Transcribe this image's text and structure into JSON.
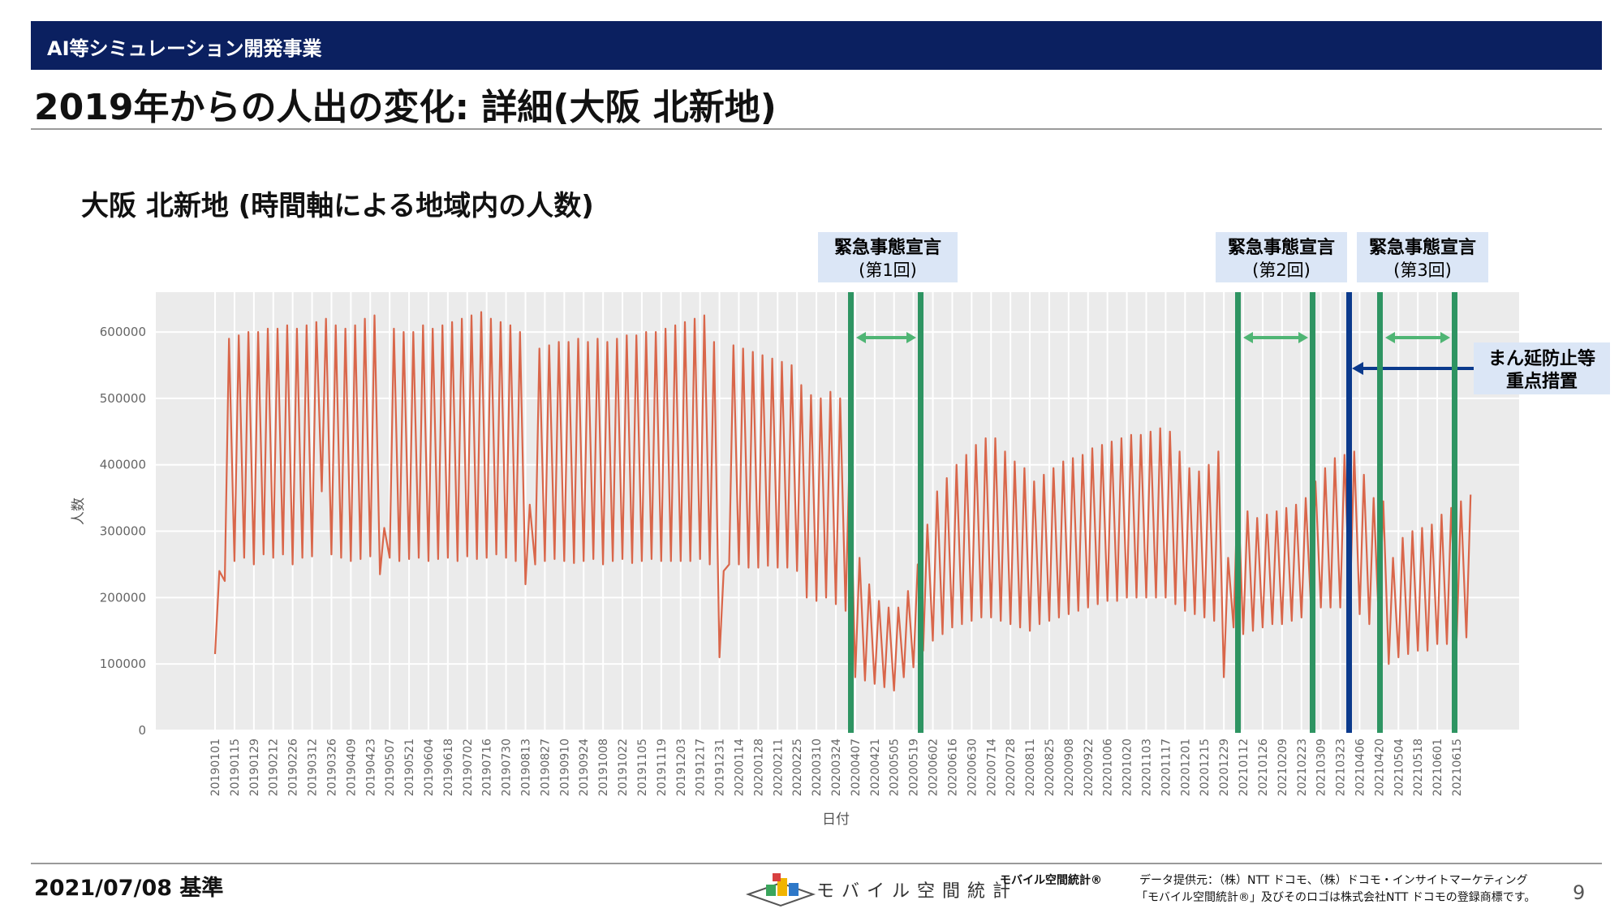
{
  "header": {
    "band_label": "AI等シミュレーション開発事業",
    "title": "2019年からの人出の変化: 詳細(大阪 北新地)"
  },
  "chart_title": "大阪 北新地 (時間軸による地域内の人数)",
  "footer": {
    "date": "2021/07/08 基準",
    "logo_text": "モバイル空間統計",
    "brand": "モバイル空間統計®",
    "provider_line1": "データ提供元：（株）NTT ドコモ、（株）ドコモ・インサイトマーケティング",
    "provider_line2": "「モバイル空間統計®」及びそのロゴは株式会社NTT ドコモの登録商標です。",
    "page": "9"
  },
  "colors": {
    "line": "#d9664a",
    "band": "#0b2060",
    "decl_bar": "#2e9462",
    "arrow": "#4fb574",
    "mambo": "#0b3a8c",
    "label_bg": "#dbe6f6"
  },
  "annotations": {
    "decl1": {
      "line1": "緊急事態宣言",
      "line2": "(第1回)"
    },
    "decl2": {
      "line1": "緊急事態宣言",
      "line2": "(第2回)"
    },
    "decl3": {
      "line1": "緊急事態宣言",
      "line2": "(第3回)"
    },
    "mambo": {
      "line1": "まん延防止等",
      "line2": "重点措置"
    }
  },
  "chart_data": {
    "type": "line",
    "title": "",
    "xlabel": "日付",
    "ylabel": "人数",
    "ylim": [
      0,
      660000
    ],
    "yticks": [
      0,
      100000,
      200000,
      300000,
      400000,
      500000,
      600000
    ],
    "ytick_labels": [
      "0",
      "100000",
      "200000",
      "300000",
      "400000",
      "500000",
      "600000"
    ],
    "x_tick_labels": [
      "20190101",
      "20190115",
      "20190129",
      "20190212",
      "20190226",
      "20190312",
      "20190326",
      "20190409",
      "20190423",
      "20190507",
      "20190521",
      "20190604",
      "20190618",
      "20190702",
      "20190716",
      "20190730",
      "20190813",
      "20190827",
      "20190910",
      "20190924",
      "20191008",
      "20191022",
      "20191105",
      "20191119",
      "20191203",
      "20191217",
      "20191231",
      "20200114",
      "20200128",
      "20200211",
      "20200225",
      "20200310",
      "20200324",
      "20200407",
      "20200421",
      "20200505",
      "20200519",
      "20200602",
      "20200616",
      "20200630",
      "20200714",
      "20200728",
      "20200811",
      "20200825",
      "20200908",
      "20200922",
      "20201006",
      "20201020",
      "20201103",
      "20201117",
      "20201201",
      "20201215",
      "20201229",
      "20210112",
      "20210126",
      "20210209",
      "20210223",
      "20210309",
      "20210323",
      "20210406",
      "20210420",
      "20210504",
      "20210518",
      "20210601",
      "20210615"
    ],
    "grid": true,
    "series": [
      {
        "weekly": [
          {
            "week": "20190101",
            "high": 240000,
            "low": 115000
          },
          {
            "week": "20190108",
            "high": 590000,
            "low": 225000
          },
          {
            "week": "20190115",
            "high": 595000,
            "low": 255000
          },
          {
            "week": "20190122",
            "high": 600000,
            "low": 260000
          },
          {
            "week": "20190129",
            "high": 600000,
            "low": 250000
          },
          {
            "week": "20190205",
            "high": 605000,
            "low": 265000
          },
          {
            "week": "20190212",
            "high": 605000,
            "low": 260000
          },
          {
            "week": "20190219",
            "high": 610000,
            "low": 265000
          },
          {
            "week": "20190226",
            "high": 605000,
            "low": 250000
          },
          {
            "week": "20190305",
            "high": 610000,
            "low": 260000
          },
          {
            "week": "20190312",
            "high": 615000,
            "low": 262000
          },
          {
            "week": "20190319",
            "high": 620000,
            "low": 360000
          },
          {
            "week": "20190326",
            "high": 610000,
            "low": 265000
          },
          {
            "week": "20190402",
            "high": 605000,
            "low": 260000
          },
          {
            "week": "20190409",
            "high": 610000,
            "low": 255000
          },
          {
            "week": "20190416",
            "high": 620000,
            "low": 258000
          },
          {
            "week": "20190423",
            "high": 625000,
            "low": 262000
          },
          {
            "week": "20190430",
            "high": 305000,
            "low": 235000
          },
          {
            "week": "20190507",
            "high": 605000,
            "low": 260000
          },
          {
            "week": "20190514",
            "high": 600000,
            "low": 255000
          },
          {
            "week": "20190521",
            "high": 600000,
            "low": 258000
          },
          {
            "week": "20190528",
            "high": 610000,
            "low": 260000
          },
          {
            "week": "20190604",
            "high": 605000,
            "low": 255000
          },
          {
            "week": "20190611",
            "high": 610000,
            "low": 258000
          },
          {
            "week": "20190618",
            "high": 615000,
            "low": 260000
          },
          {
            "week": "20190625",
            "high": 620000,
            "low": 255000
          },
          {
            "week": "20190702",
            "high": 625000,
            "low": 262000
          },
          {
            "week": "20190709",
            "high": 630000,
            "low": 258000
          },
          {
            "week": "20190716",
            "high": 620000,
            "low": 260000
          },
          {
            "week": "20190723",
            "high": 615000,
            "low": 265000
          },
          {
            "week": "20190730",
            "high": 610000,
            "low": 260000
          },
          {
            "week": "20190806",
            "high": 600000,
            "low": 255000
          },
          {
            "week": "20190813",
            "high": 340000,
            "low": 220000
          },
          {
            "week": "20190820",
            "high": 575000,
            "low": 250000
          },
          {
            "week": "20190827",
            "high": 580000,
            "low": 255000
          },
          {
            "week": "20190903",
            "high": 585000,
            "low": 258000
          },
          {
            "week": "20190910",
            "high": 585000,
            "low": 255000
          },
          {
            "week": "20190917",
            "high": 590000,
            "low": 252000
          },
          {
            "week": "20190924",
            "high": 585000,
            "low": 255000
          },
          {
            "week": "20191001",
            "high": 590000,
            "low": 258000
          },
          {
            "week": "20191008",
            "high": 585000,
            "low": 250000
          },
          {
            "week": "20191015",
            "high": 590000,
            "low": 255000
          },
          {
            "week": "20191022",
            "high": 595000,
            "low": 258000
          },
          {
            "week": "20191029",
            "high": 595000,
            "low": 252000
          },
          {
            "week": "20191105",
            "high": 600000,
            "low": 255000
          },
          {
            "week": "20191112",
            "high": 600000,
            "low": 258000
          },
          {
            "week": "20191119",
            "high": 605000,
            "low": 255000
          },
          {
            "week": "20191126",
            "high": 610000,
            "low": 255000
          },
          {
            "week": "20191203",
            "high": 615000,
            "low": 255000
          },
          {
            "week": "20191210",
            "high": 620000,
            "low": 255000
          },
          {
            "week": "20191217",
            "high": 625000,
            "low": 258000
          },
          {
            "week": "20191224",
            "high": 585000,
            "low": 250000
          },
          {
            "week": "20191231",
            "high": 240000,
            "low": 110000
          },
          {
            "week": "20200107",
            "high": 580000,
            "low": 250000
          },
          {
            "week": "20200114",
            "high": 575000,
            "low": 250000
          },
          {
            "week": "20200121",
            "high": 570000,
            "low": 245000
          },
          {
            "week": "20200128",
            "high": 565000,
            "low": 245000
          },
          {
            "week": "20200204",
            "high": 560000,
            "low": 248000
          },
          {
            "week": "20200211",
            "high": 555000,
            "low": 245000
          },
          {
            "week": "20200218",
            "high": 550000,
            "low": 245000
          },
          {
            "week": "20200225",
            "high": 520000,
            "low": 240000
          },
          {
            "week": "20200303",
            "high": 505000,
            "low": 200000
          },
          {
            "week": "20200310",
            "high": 500000,
            "low": 195000
          },
          {
            "week": "20200317",
            "high": 510000,
            "low": 200000
          },
          {
            "week": "20200324",
            "high": 500000,
            "low": 190000
          },
          {
            "week": "20200331",
            "high": 430000,
            "low": 180000
          },
          {
            "week": "20200407",
            "high": 260000,
            "low": 80000
          },
          {
            "week": "20200414",
            "high": 220000,
            "low": 75000
          },
          {
            "week": "20200421",
            "high": 195000,
            "low": 70000
          },
          {
            "week": "20200428",
            "high": 185000,
            "low": 65000
          },
          {
            "week": "20200505",
            "high": 185000,
            "low": 60000
          },
          {
            "week": "20200512",
            "high": 210000,
            "low": 80000
          },
          {
            "week": "20200519",
            "high": 250000,
            "low": 95000
          },
          {
            "week": "20200526",
            "high": 310000,
            "low": 120000
          },
          {
            "week": "20200602",
            "high": 360000,
            "low": 135000
          },
          {
            "week": "20200609",
            "high": 380000,
            "low": 145000
          },
          {
            "week": "20200616",
            "high": 400000,
            "low": 155000
          },
          {
            "week": "20200623",
            "high": 415000,
            "low": 160000
          },
          {
            "week": "20200630",
            "high": 430000,
            "low": 165000
          },
          {
            "week": "20200707",
            "high": 440000,
            "low": 170000
          },
          {
            "week": "20200714",
            "high": 440000,
            "low": 170000
          },
          {
            "week": "20200721",
            "high": 420000,
            "low": 165000
          },
          {
            "week": "20200728",
            "high": 405000,
            "low": 160000
          },
          {
            "week": "20200804",
            "high": 395000,
            "low": 155000
          },
          {
            "week": "20200811",
            "high": 375000,
            "low": 150000
          },
          {
            "week": "20200818",
            "high": 385000,
            "low": 160000
          },
          {
            "week": "20200825",
            "high": 395000,
            "low": 165000
          },
          {
            "week": "20200901",
            "high": 405000,
            "low": 170000
          },
          {
            "week": "20200908",
            "high": 410000,
            "low": 175000
          },
          {
            "week": "20200915",
            "high": 415000,
            "low": 180000
          },
          {
            "week": "20200922",
            "high": 425000,
            "low": 185000
          },
          {
            "week": "20200929",
            "high": 430000,
            "low": 190000
          },
          {
            "week": "20201006",
            "high": 435000,
            "low": 195000
          },
          {
            "week": "20201013",
            "high": 440000,
            "low": 195000
          },
          {
            "week": "20201020",
            "high": 445000,
            "low": 200000
          },
          {
            "week": "20201027",
            "high": 445000,
            "low": 200000
          },
          {
            "week": "20201103",
            "high": 450000,
            "low": 200000
          },
          {
            "week": "20201110",
            "high": 455000,
            "low": 200000
          },
          {
            "week": "20201117",
            "high": 450000,
            "low": 200000
          },
          {
            "week": "20201124",
            "high": 420000,
            "low": 190000
          },
          {
            "week": "20201201",
            "high": 395000,
            "low": 180000
          },
          {
            "week": "20201208",
            "high": 390000,
            "low": 175000
          },
          {
            "week": "20201215",
            "high": 400000,
            "low": 170000
          },
          {
            "week": "20201222",
            "high": 420000,
            "low": 165000
          },
          {
            "week": "20201229",
            "high": 260000,
            "low": 80000
          },
          {
            "week": "20210105",
            "high": 370000,
            "low": 155000
          },
          {
            "week": "20210112",
            "high": 330000,
            "low": 145000
          },
          {
            "week": "20210119",
            "high": 320000,
            "low": 150000
          },
          {
            "week": "20210126",
            "high": 325000,
            "low": 155000
          },
          {
            "week": "20210202",
            "high": 330000,
            "low": 160000
          },
          {
            "week": "20210209",
            "high": 335000,
            "low": 160000
          },
          {
            "week": "20210216",
            "high": 340000,
            "low": 165000
          },
          {
            "week": "20210223",
            "high": 350000,
            "low": 170000
          },
          {
            "week": "20210302",
            "high": 375000,
            "low": 180000
          },
          {
            "week": "20210309",
            "high": 395000,
            "low": 185000
          },
          {
            "week": "20210316",
            "high": 410000,
            "low": 185000
          },
          {
            "week": "20210323",
            "high": 415000,
            "low": 185000
          },
          {
            "week": "20210330",
            "high": 420000,
            "low": 190000
          },
          {
            "week": "20210406",
            "high": 385000,
            "low": 175000
          },
          {
            "week": "20210413",
            "high": 350000,
            "low": 160000
          },
          {
            "week": "20210420",
            "high": 345000,
            "low": 155000
          },
          {
            "week": "20210427",
            "high": 260000,
            "low": 100000
          },
          {
            "week": "20210504",
            "high": 290000,
            "low": 110000
          },
          {
            "week": "20210511",
            "high": 300000,
            "low": 115000
          },
          {
            "week": "20210518",
            "high": 305000,
            "low": 120000
          },
          {
            "week": "20210525",
            "high": 310000,
            "low": 120000
          },
          {
            "week": "20210601",
            "high": 325000,
            "low": 130000
          },
          {
            "week": "20210608",
            "high": 335000,
            "low": 130000
          },
          {
            "week": "20210615",
            "high": 345000,
            "low": 135000
          },
          {
            "week": "20210622",
            "high": 355000,
            "low": 140000
          }
        ]
      }
    ],
    "events": [
      {
        "label": "緊急事態宣言 (第1回)",
        "start": "20200407",
        "end": "20200525"
      },
      {
        "label": "緊急事態宣言 (第2回)",
        "start": "20210114",
        "end": "20210228"
      },
      {
        "label": "まん延防止等 重点措置",
        "date": "20210405"
      },
      {
        "label": "緊急事態宣言 (第3回)",
        "start": "20210425",
        "end": "20210620"
      }
    ]
  }
}
